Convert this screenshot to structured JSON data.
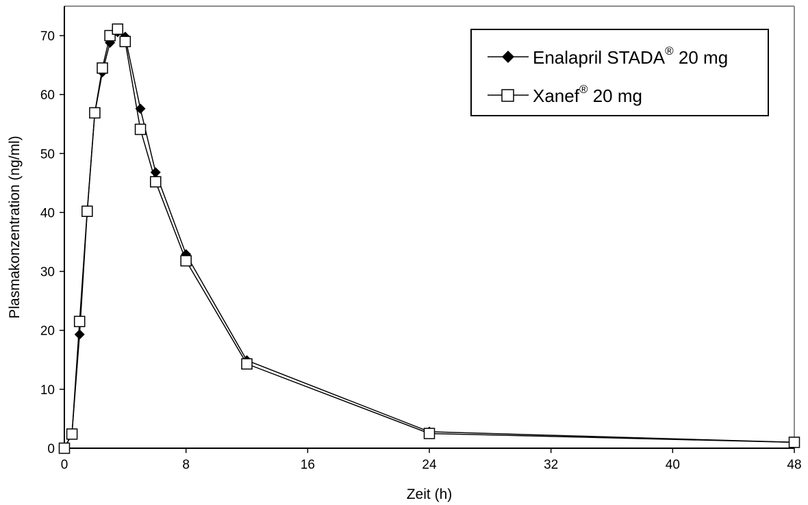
{
  "chart_data": {
    "type": "line",
    "title": "",
    "xlabel": "Zeit (h)",
    "ylabel": "Plasmakonzentration (ng/ml)",
    "xlim": [
      0,
      48
    ],
    "ylim": [
      0,
      75
    ],
    "xticks": [
      0,
      8,
      16,
      24,
      32,
      40,
      48
    ],
    "yticks": [
      0,
      10,
      20,
      30,
      40,
      50,
      60,
      70
    ],
    "grid": false,
    "legend_position": "top-right",
    "series": [
      {
        "name": "Enalapril STADA® 20 mg",
        "legend_main": "Enalapril STADA",
        "legend_sup": "®",
        "legend_tail": " 20 mg",
        "marker": "filled-diamond",
        "color": "#000000",
        "x": [
          0,
          0.5,
          1,
          1.5,
          2,
          2.5,
          3,
          3.5,
          4,
          5,
          6,
          8,
          12,
          24,
          48
        ],
        "y": [
          0,
          2.5,
          19.3,
          40.0,
          56.8,
          63.8,
          68.8,
          70.6,
          69.8,
          57.6,
          46.8,
          32.9,
          14.9,
          2.8,
          1.0
        ]
      },
      {
        "name": "Xanef® 20 mg",
        "legend_main": "Xanef",
        "legend_sup": "®",
        "legend_tail": " 20 mg",
        "marker": "open-square",
        "color": "#000000",
        "x": [
          0,
          0.5,
          1,
          1.5,
          2,
          2.5,
          3,
          3.5,
          4,
          5,
          6,
          8,
          12,
          24,
          48
        ],
        "y": [
          0,
          2.4,
          21.5,
          40.2,
          56.9,
          64.5,
          70.0,
          71.1,
          69.0,
          54.1,
          45.2,
          31.8,
          14.3,
          2.5,
          1.0
        ]
      }
    ]
  }
}
